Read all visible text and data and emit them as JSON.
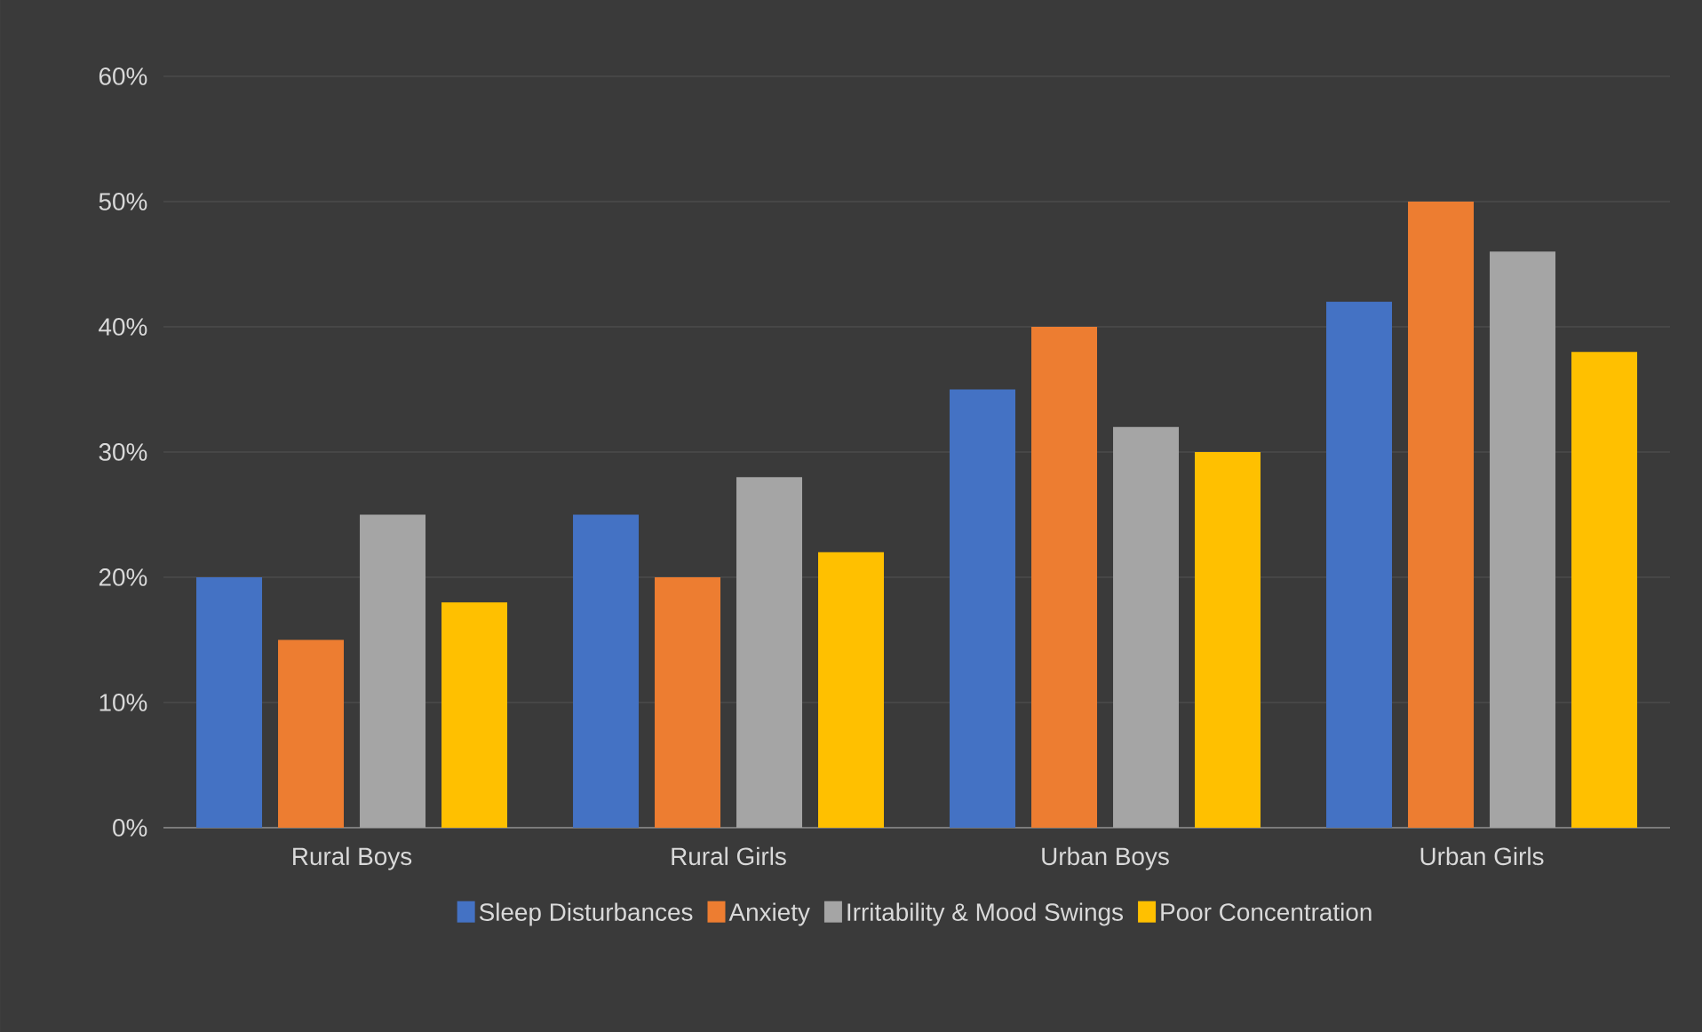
{
  "chart_data": {
    "type": "bar",
    "categories": [
      "Rural Boys",
      "Rural Girls",
      "Urban Boys",
      "Urban Girls"
    ],
    "series": [
      {
        "name": "Sleep Disturbances",
        "color": "#4472c4",
        "values": [
          20,
          25,
          35,
          42
        ]
      },
      {
        "name": "Anxiety",
        "color": "#ed7d31",
        "values": [
          15,
          20,
          40,
          50
        ]
      },
      {
        "name": "Irritability & Mood Swings",
        "color": "#a5a5a5",
        "values": [
          25,
          28,
          32,
          46
        ]
      },
      {
        "name": "Poor Concentration",
        "color": "#ffc000",
        "values": [
          18,
          22,
          30,
          38
        ]
      }
    ],
    "ylim": [
      0,
      60
    ],
    "yticks": [
      {
        "value": 0,
        "label": "0%"
      },
      {
        "value": 10,
        "label": "10%"
      },
      {
        "value": 20,
        "label": "20%"
      },
      {
        "value": 30,
        "label": "30%"
      },
      {
        "value": 40,
        "label": "40%"
      },
      {
        "value": 50,
        "label": "50%"
      },
      {
        "value": 60,
        "label": "60%"
      }
    ],
    "grid": "y",
    "legend": "bottom"
  }
}
